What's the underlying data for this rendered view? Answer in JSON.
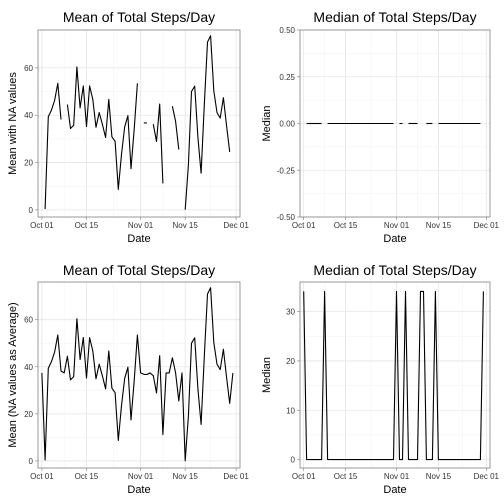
{
  "chart_data": [
    {
      "type": "line",
      "title": "Mean of Total Steps/Day",
      "xlabel": "Date",
      "ylabel": "Mean with NA values",
      "x": [
        "2012-10-01",
        "2012-10-02",
        "2012-10-03",
        "2012-10-04",
        "2012-10-05",
        "2012-10-06",
        "2012-10-07",
        "2012-10-08",
        "2012-10-09",
        "2012-10-10",
        "2012-10-11",
        "2012-10-12",
        "2012-10-13",
        "2012-10-14",
        "2012-10-15",
        "2012-10-16",
        "2012-10-17",
        "2012-10-18",
        "2012-10-19",
        "2012-10-20",
        "2012-10-21",
        "2012-10-22",
        "2012-10-23",
        "2012-10-24",
        "2012-10-25",
        "2012-10-26",
        "2012-10-27",
        "2012-10-28",
        "2012-10-29",
        "2012-10-30",
        "2012-10-31",
        "2012-11-01",
        "2012-11-02",
        "2012-11-03",
        "2012-11-04",
        "2012-11-05",
        "2012-11-06",
        "2012-11-07",
        "2012-11-08",
        "2012-11-09",
        "2012-11-10",
        "2012-11-11",
        "2012-11-12",
        "2012-11-13",
        "2012-11-14",
        "2012-11-15",
        "2012-11-16",
        "2012-11-17",
        "2012-11-18",
        "2012-11-19",
        "2012-11-20",
        "2012-11-21",
        "2012-11-22",
        "2012-11-23",
        "2012-11-24",
        "2012-11-25",
        "2012-11-26",
        "2012-11-27",
        "2012-11-28",
        "2012-11-29",
        "2012-11-30"
      ],
      "values": [
        null,
        0.4,
        39.4,
        42.1,
        46.2,
        53.5,
        38.2,
        null,
        44.5,
        34.4,
        35.8,
        60.4,
        43.1,
        52.4,
        35.2,
        52.4,
        46.7,
        34.9,
        41.1,
        36.1,
        30.6,
        46.7,
        30.9,
        29.0,
        8.7,
        23.5,
        35.1,
        39.8,
        17.4,
        34.1,
        53.5,
        null,
        36.8,
        36.7,
        null,
        36.2,
        28.9,
        44.7,
        11.2,
        null,
        null,
        43.8,
        37.4,
        25.5,
        null,
        0.1,
        19.0,
        50.0,
        52.3,
        30.7,
        15.5,
        44.4,
        70.9,
        73.6,
        50.3,
        41.1,
        38.8,
        47.4,
        35.4,
        24.5,
        null
      ],
      "ylim": [
        -3,
        76
      ],
      "yticks": [
        0,
        20,
        40,
        60
      ],
      "ytick_labels": [
        "0",
        "20",
        "40",
        "60"
      ],
      "xticks": [
        "2012-10-01",
        "2012-10-15",
        "2012-11-01",
        "2012-11-15",
        "2012-12-01"
      ],
      "xtick_labels": [
        "Oct 01",
        "Oct 15",
        "Nov 01",
        "Nov 15",
        "Dec 01"
      ],
      "grid": true
    },
    {
      "type": "line",
      "title": "Median of Total Steps/Day",
      "xlabel": "Date",
      "ylabel": "Median",
      "x": [
        "2012-10-01",
        "2012-10-02",
        "2012-10-03",
        "2012-10-04",
        "2012-10-05",
        "2012-10-06",
        "2012-10-07",
        "2012-10-08",
        "2012-10-09",
        "2012-10-10",
        "2012-10-11",
        "2012-10-12",
        "2012-10-13",
        "2012-10-14",
        "2012-10-15",
        "2012-10-16",
        "2012-10-17",
        "2012-10-18",
        "2012-10-19",
        "2012-10-20",
        "2012-10-21",
        "2012-10-22",
        "2012-10-23",
        "2012-10-24",
        "2012-10-25",
        "2012-10-26",
        "2012-10-27",
        "2012-10-28",
        "2012-10-29",
        "2012-10-30",
        "2012-10-31",
        "2012-11-01",
        "2012-11-02",
        "2012-11-03",
        "2012-11-04",
        "2012-11-05",
        "2012-11-06",
        "2012-11-07",
        "2012-11-08",
        "2012-11-09",
        "2012-11-10",
        "2012-11-11",
        "2012-11-12",
        "2012-11-13",
        "2012-11-14",
        "2012-11-15",
        "2012-11-16",
        "2012-11-17",
        "2012-11-18",
        "2012-11-19",
        "2012-11-20",
        "2012-11-21",
        "2012-11-22",
        "2012-11-23",
        "2012-11-24",
        "2012-11-25",
        "2012-11-26",
        "2012-11-27",
        "2012-11-28",
        "2012-11-29",
        "2012-11-30"
      ],
      "values": [
        null,
        0,
        0,
        0,
        0,
        0,
        0,
        null,
        0,
        0,
        0,
        0,
        0,
        0,
        0,
        0,
        0,
        0,
        0,
        0,
        0,
        0,
        0,
        0,
        0,
        0,
        0,
        0,
        0,
        0,
        0,
        null,
        0,
        0,
        null,
        0,
        0,
        0,
        0,
        null,
        null,
        0,
        0,
        0,
        null,
        0,
        0,
        0,
        0,
        0,
        0,
        0,
        0,
        0,
        0,
        0,
        0,
        0,
        0,
        0,
        null
      ],
      "ylim": [
        -0.5,
        0.5
      ],
      "yticks": [
        -0.5,
        -0.25,
        0,
        0.25,
        0.5
      ],
      "ytick_labels": [
        "-0.50",
        "-0.25",
        "0.00",
        "0.25",
        "0.50"
      ],
      "xticks": [
        "2012-10-01",
        "2012-10-15",
        "2012-11-01",
        "2012-11-15",
        "2012-12-01"
      ],
      "xtick_labels": [
        "Oct 01",
        "Oct 15",
        "Nov 01",
        "Nov 15",
        "Dec 01"
      ],
      "grid": true
    },
    {
      "type": "line",
      "title": "Mean of Total Steps/Day",
      "xlabel": "Date",
      "ylabel": "Mean (NA values as Average)",
      "x": [
        "2012-10-01",
        "2012-10-02",
        "2012-10-03",
        "2012-10-04",
        "2012-10-05",
        "2012-10-06",
        "2012-10-07",
        "2012-10-08",
        "2012-10-09",
        "2012-10-10",
        "2012-10-11",
        "2012-10-12",
        "2012-10-13",
        "2012-10-14",
        "2012-10-15",
        "2012-10-16",
        "2012-10-17",
        "2012-10-18",
        "2012-10-19",
        "2012-10-20",
        "2012-10-21",
        "2012-10-22",
        "2012-10-23",
        "2012-10-24",
        "2012-10-25",
        "2012-10-26",
        "2012-10-27",
        "2012-10-28",
        "2012-10-29",
        "2012-10-30",
        "2012-10-31",
        "2012-11-01",
        "2012-11-02",
        "2012-11-03",
        "2012-11-04",
        "2012-11-05",
        "2012-11-06",
        "2012-11-07",
        "2012-11-08",
        "2012-11-09",
        "2012-11-10",
        "2012-11-11",
        "2012-11-12",
        "2012-11-13",
        "2012-11-14",
        "2012-11-15",
        "2012-11-16",
        "2012-11-17",
        "2012-11-18",
        "2012-11-19",
        "2012-11-20",
        "2012-11-21",
        "2012-11-22",
        "2012-11-23",
        "2012-11-24",
        "2012-11-25",
        "2012-11-26",
        "2012-11-27",
        "2012-11-28",
        "2012-11-29",
        "2012-11-30"
      ],
      "values": [
        37.4,
        0.4,
        39.4,
        42.1,
        46.2,
        53.5,
        38.2,
        37.4,
        44.5,
        34.4,
        35.8,
        60.4,
        43.1,
        52.4,
        35.2,
        52.4,
        46.7,
        34.9,
        41.1,
        36.1,
        30.6,
        46.7,
        30.9,
        29.0,
        8.7,
        23.5,
        35.1,
        39.8,
        17.4,
        34.1,
        53.5,
        37.4,
        36.8,
        36.7,
        37.4,
        36.2,
        28.9,
        44.7,
        11.2,
        37.4,
        37.4,
        43.8,
        37.4,
        25.5,
        37.4,
        0.1,
        19.0,
        50.0,
        52.3,
        30.7,
        15.5,
        44.4,
        70.9,
        73.6,
        50.3,
        41.1,
        38.8,
        47.4,
        35.4,
        24.5,
        37.4
      ],
      "ylim": [
        -3,
        76
      ],
      "yticks": [
        0,
        20,
        40,
        60
      ],
      "ytick_labels": [
        "0",
        "20",
        "40",
        "60"
      ],
      "xticks": [
        "2012-10-01",
        "2012-10-15",
        "2012-11-01",
        "2012-11-15",
        "2012-12-01"
      ],
      "xtick_labels": [
        "Oct 01",
        "Oct 15",
        "Nov 01",
        "Nov 15",
        "Dec 01"
      ],
      "grid": true
    },
    {
      "type": "line",
      "title": "Median of Total Steps/Day",
      "xlabel": "Date",
      "ylabel": "Median",
      "x": [
        "2012-10-01",
        "2012-10-02",
        "2012-10-03",
        "2012-10-04",
        "2012-10-05",
        "2012-10-06",
        "2012-10-07",
        "2012-10-08",
        "2012-10-09",
        "2012-10-10",
        "2012-10-11",
        "2012-10-12",
        "2012-10-13",
        "2012-10-14",
        "2012-10-15",
        "2012-10-16",
        "2012-10-17",
        "2012-10-18",
        "2012-10-19",
        "2012-10-20",
        "2012-10-21",
        "2012-10-22",
        "2012-10-23",
        "2012-10-24",
        "2012-10-25",
        "2012-10-26",
        "2012-10-27",
        "2012-10-28",
        "2012-10-29",
        "2012-10-30",
        "2012-10-31",
        "2012-11-01",
        "2012-11-02",
        "2012-11-03",
        "2012-11-04",
        "2012-11-05",
        "2012-11-06",
        "2012-11-07",
        "2012-11-08",
        "2012-11-09",
        "2012-11-10",
        "2012-11-11",
        "2012-11-12",
        "2012-11-13",
        "2012-11-14",
        "2012-11-15",
        "2012-11-16",
        "2012-11-17",
        "2012-11-18",
        "2012-11-19",
        "2012-11-20",
        "2012-11-21",
        "2012-11-22",
        "2012-11-23",
        "2012-11-24",
        "2012-11-25",
        "2012-11-26",
        "2012-11-27",
        "2012-11-28",
        "2012-11-29",
        "2012-11-30"
      ],
      "values": [
        34.1,
        0,
        0,
        0,
        0,
        0,
        0,
        34.1,
        0,
        0,
        0,
        0,
        0,
        0,
        0,
        0,
        0,
        0,
        0,
        0,
        0,
        0,
        0,
        0,
        0,
        0,
        0,
        0,
        0,
        0,
        0,
        34.1,
        0,
        0,
        34.1,
        0,
        0,
        0,
        0,
        34.1,
        34.1,
        0,
        0,
        0,
        34.1,
        0,
        0,
        0,
        0,
        0,
        0,
        0,
        0,
        0,
        0,
        0,
        0,
        0,
        0,
        0,
        34.1
      ],
      "ylim": [
        -1.7,
        36
      ],
      "yticks": [
        0,
        10,
        20,
        30
      ],
      "ytick_labels": [
        "0",
        "10",
        "20",
        "30"
      ],
      "xticks": [
        "2012-10-01",
        "2012-10-15",
        "2012-11-01",
        "2012-11-15",
        "2012-12-01"
      ],
      "xtick_labels": [
        "Oct 01",
        "Oct 15",
        "Nov 01",
        "Nov 15",
        "Dec 01"
      ],
      "grid": true
    }
  ]
}
